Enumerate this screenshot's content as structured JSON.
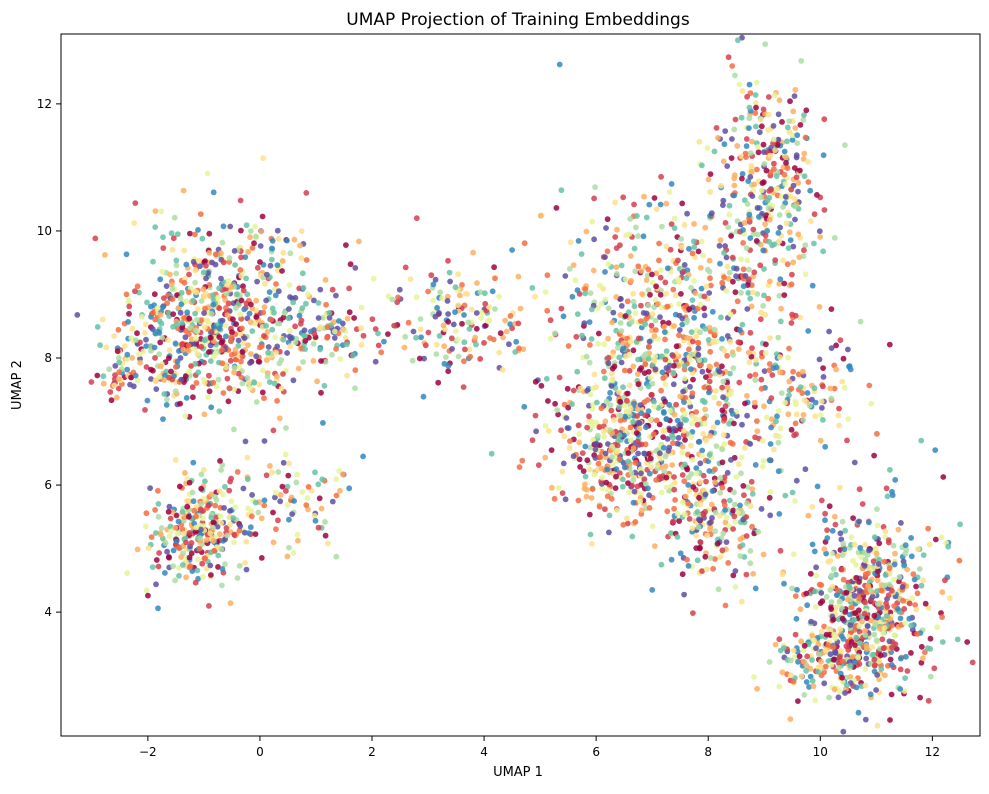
{
  "chart_data": {
    "type": "scatter",
    "title": "UMAP Projection of Training Embeddings",
    "xlabel": "UMAP 1",
    "ylabel": "UMAP 2",
    "xlim": [
      -3.55,
      12.85
    ],
    "ylim": [
      2.05,
      13.1
    ],
    "xticks": [
      -2,
      0,
      2,
      4,
      6,
      8,
      10,
      12
    ],
    "xtick_labels": [
      "−2",
      "0",
      "2",
      "4",
      "6",
      "8",
      "10",
      "12"
    ],
    "yticks": [
      4,
      6,
      8,
      10,
      12
    ],
    "ytick_labels": [
      "4",
      "6",
      "8",
      "10",
      "12"
    ],
    "grid": false,
    "legend": "none",
    "colormap": "Spectral",
    "palette": [
      "#9e0142",
      "#d53e4f",
      "#f46d43",
      "#fdae61",
      "#fee08b",
      "#e6f598",
      "#abdda4",
      "#66c2a5",
      "#3288bd",
      "#5e4fa2"
    ],
    "clusters": [
      {
        "region": "upper-left cloud",
        "cx": -0.5,
        "cy": 8.7,
        "sx": 0.95,
        "sy": 0.75,
        "n": 560
      },
      {
        "region": "upper-left cloud dense core",
        "cx": -1.2,
        "cy": 8.3,
        "sx": 0.55,
        "sy": 0.45,
        "n": 200
      },
      {
        "region": "left tail",
        "cx": -2.4,
        "cy": 7.8,
        "sx": 0.3,
        "sy": 0.25,
        "n": 60
      },
      {
        "region": "lower-left cluster",
        "cx": -1.1,
        "cy": 5.3,
        "sx": 0.42,
        "sy": 0.42,
        "n": 300
      },
      {
        "region": "left arc",
        "cx": 0.4,
        "cy": 5.8,
        "sx": 0.6,
        "sy": 0.45,
        "n": 90
      },
      {
        "region": "left-center strand",
        "cx": 1.2,
        "cy": 8.4,
        "sx": 0.4,
        "sy": 0.25,
        "n": 70
      },
      {
        "region": "bridge",
        "cx": 3.4,
        "cy": 8.6,
        "sx": 0.65,
        "sy": 0.45,
        "n": 150
      },
      {
        "region": "central cloud",
        "cx": 7.3,
        "cy": 8.0,
        "sx": 1.05,
        "sy": 1.2,
        "n": 950
      },
      {
        "region": "central cloud lower lobe",
        "cx": 6.4,
        "cy": 6.5,
        "sx": 0.55,
        "sy": 0.45,
        "n": 260
      },
      {
        "region": "central cloud lower tail",
        "cx": 8.1,
        "cy": 5.6,
        "sx": 0.55,
        "sy": 0.6,
        "n": 220
      },
      {
        "region": "upper-right arm",
        "cx": 9.1,
        "cy": 10.8,
        "sx": 0.45,
        "sy": 0.8,
        "n": 320
      },
      {
        "region": "right-middle patch",
        "cx": 9.6,
        "cy": 7.4,
        "sx": 0.6,
        "sy": 0.55,
        "n": 120
      },
      {
        "region": "lower-right cluster",
        "cx": 10.9,
        "cy": 4.1,
        "sx": 0.55,
        "sy": 0.75,
        "n": 620
      },
      {
        "region": "lower-right ring",
        "cx": 10.2,
        "cy": 3.3,
        "sx": 0.5,
        "sy": 0.3,
        "n": 150
      }
    ],
    "outliers": [
      {
        "x": 5.35,
        "y": 12.62
      },
      {
        "x": 9.6,
        "y": 2.6
      },
      {
        "x": 12.05,
        "y": 6.55
      },
      {
        "x": 11.8,
        "y": 6.7
      },
      {
        "x": 7.0,
        "y": 4.35
      },
      {
        "x": 2.8,
        "y": 10.2
      },
      {
        "x": 4.5,
        "y": 9.7
      }
    ]
  }
}
